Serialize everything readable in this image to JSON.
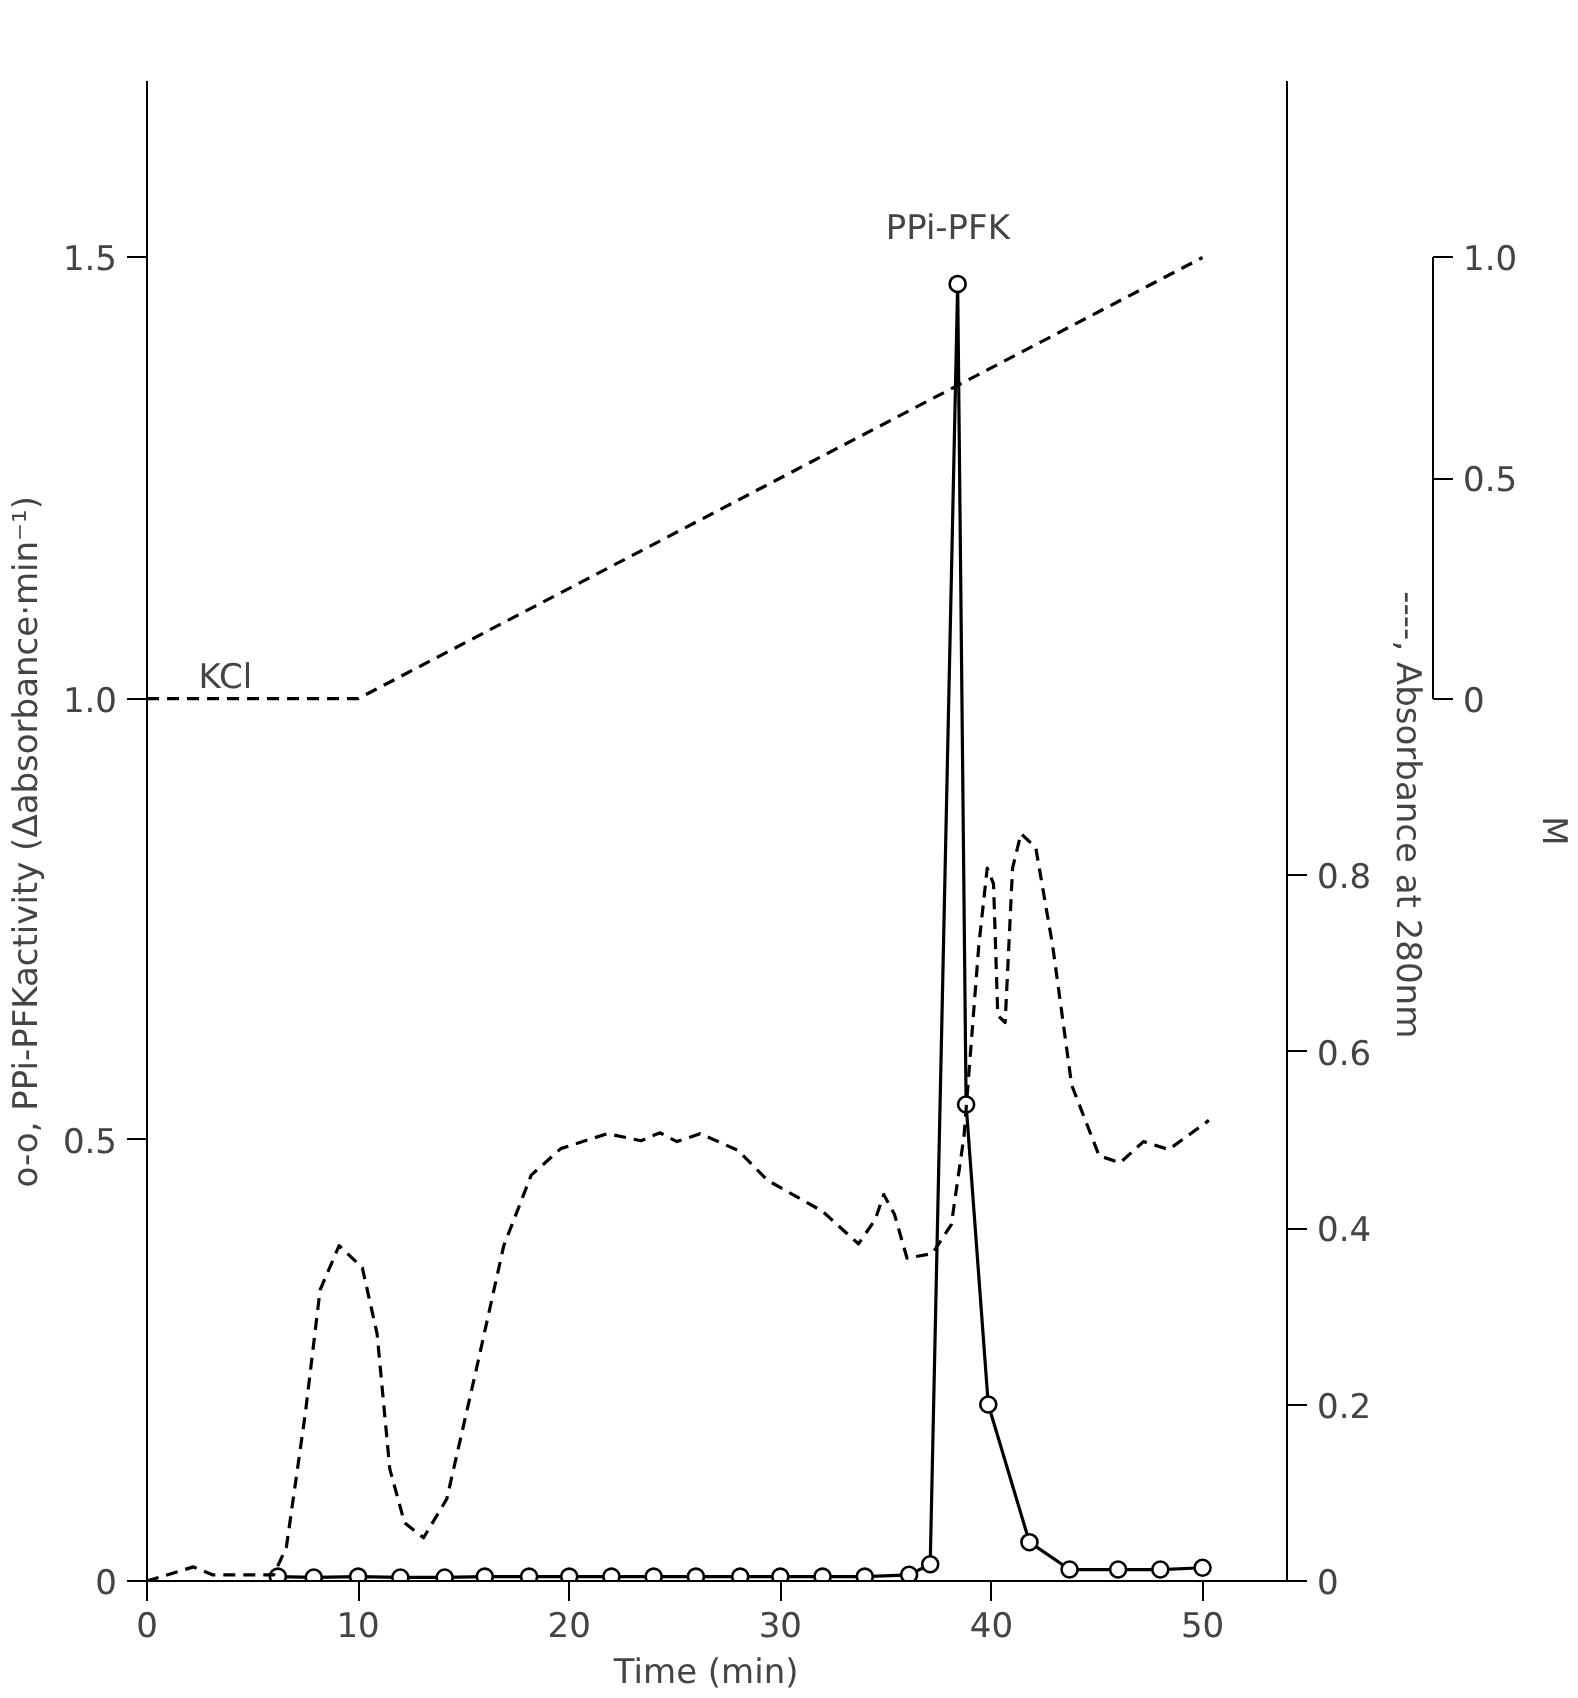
{
  "chart_data": {
    "type": "line",
    "xlabel": "Time   (min)",
    "ylabel": "o-o,  PPi-PFKactivity  (Δabsorbance·min⁻¹)",
    "y2label": "----,  Absorbance  at  280nm",
    "y3label": "M",
    "xlim": [
      0,
      54
    ],
    "xticks": [
      0,
      10,
      20,
      30,
      40,
      50
    ],
    "ylim": [
      0,
      1.7
    ],
    "yticks": [
      0,
      0.5,
      {
        "value": 1,
        "label": "1.0"
      },
      1.5
    ],
    "y2lim": [
      0,
      1.7
    ],
    "y2ticks": [
      0,
      0.2,
      0.4,
      0.6,
      0.8
    ],
    "y3lim": [
      -2,
      1.4
    ],
    "y3ticks": [
      0,
      0.5,
      {
        "value": 1,
        "label": "1.0"
      }
    ],
    "grid": false,
    "annotations": [
      "PPi-PFK",
      "KCl"
    ],
    "series": [
      {
        "axis": "y",
        "color": "#000000",
        "marker": "circle",
        "line_style": "solid",
        "x": [
          6.2,
          7.9,
          10,
          12,
          14.1,
          16,
          18.1,
          20,
          22,
          24,
          26,
          28.1,
          30,
          32,
          34,
          36.1,
          37.1,
          38.4,
          38.8,
          39.85,
          41.8,
          43.7,
          46,
          48,
          50
        ],
        "values": [
          0.005,
          0.004,
          0.005,
          0.004,
          0.004,
          0.005,
          0.005,
          0.005,
          0.005,
          0.005,
          0.005,
          0.005,
          0.005,
          0.005,
          0.005,
          0.007,
          0.019,
          1.47,
          0.54,
          0.2,
          0.044,
          0.013,
          0.013,
          0.013,
          0.015
        ]
      },
      {
        "axis": "y2",
        "color": "#000000",
        "marker": "none",
        "line_style": "dashed",
        "x": [
          0,
          2.2,
          3.1,
          6.0,
          6.6,
          7.5,
          8.2,
          9.1,
          10.2,
          10.9,
          11.5,
          12.2,
          13.1,
          14.2,
          15.6,
          16.9,
          18.2,
          19.6,
          21.8,
          23.4,
          24.3,
          25.1,
          26.2,
          28.0,
          29.4,
          32.0,
          33.7,
          34.5,
          34.9,
          35.4,
          36.0,
          37.2,
          38.1,
          38.7,
          39.4,
          39.8,
          40.1,
          40.3,
          40.65,
          41.0,
          41.4,
          42.1,
          42.9,
          43.8,
          45.1,
          46.1,
          47.2,
          48.4,
          50.3
        ],
        "values": [
          0,
          0.016,
          0.007,
          0.007,
          0.038,
          0.19,
          0.33,
          0.38,
          0.355,
          0.28,
          0.127,
          0.066,
          0.049,
          0.093,
          0.24,
          0.38,
          0.46,
          0.49,
          0.507,
          0.499,
          0.508,
          0.498,
          0.507,
          0.488,
          0.454,
          0.419,
          0.382,
          0.41,
          0.438,
          0.416,
          0.366,
          0.371,
          0.404,
          0.504,
          0.72,
          0.808,
          0.79,
          0.641,
          0.633,
          0.808,
          0.847,
          0.831,
          0.72,
          0.562,
          0.482,
          0.474,
          0.498,
          0.489,
          0.522
        ]
      },
      {
        "axis": "y3",
        "color": "#000000",
        "marker": "none",
        "line_style": "dashed",
        "x": [
          0,
          10,
          50
        ],
        "values": [
          0,
          0,
          1.0
        ]
      }
    ]
  }
}
